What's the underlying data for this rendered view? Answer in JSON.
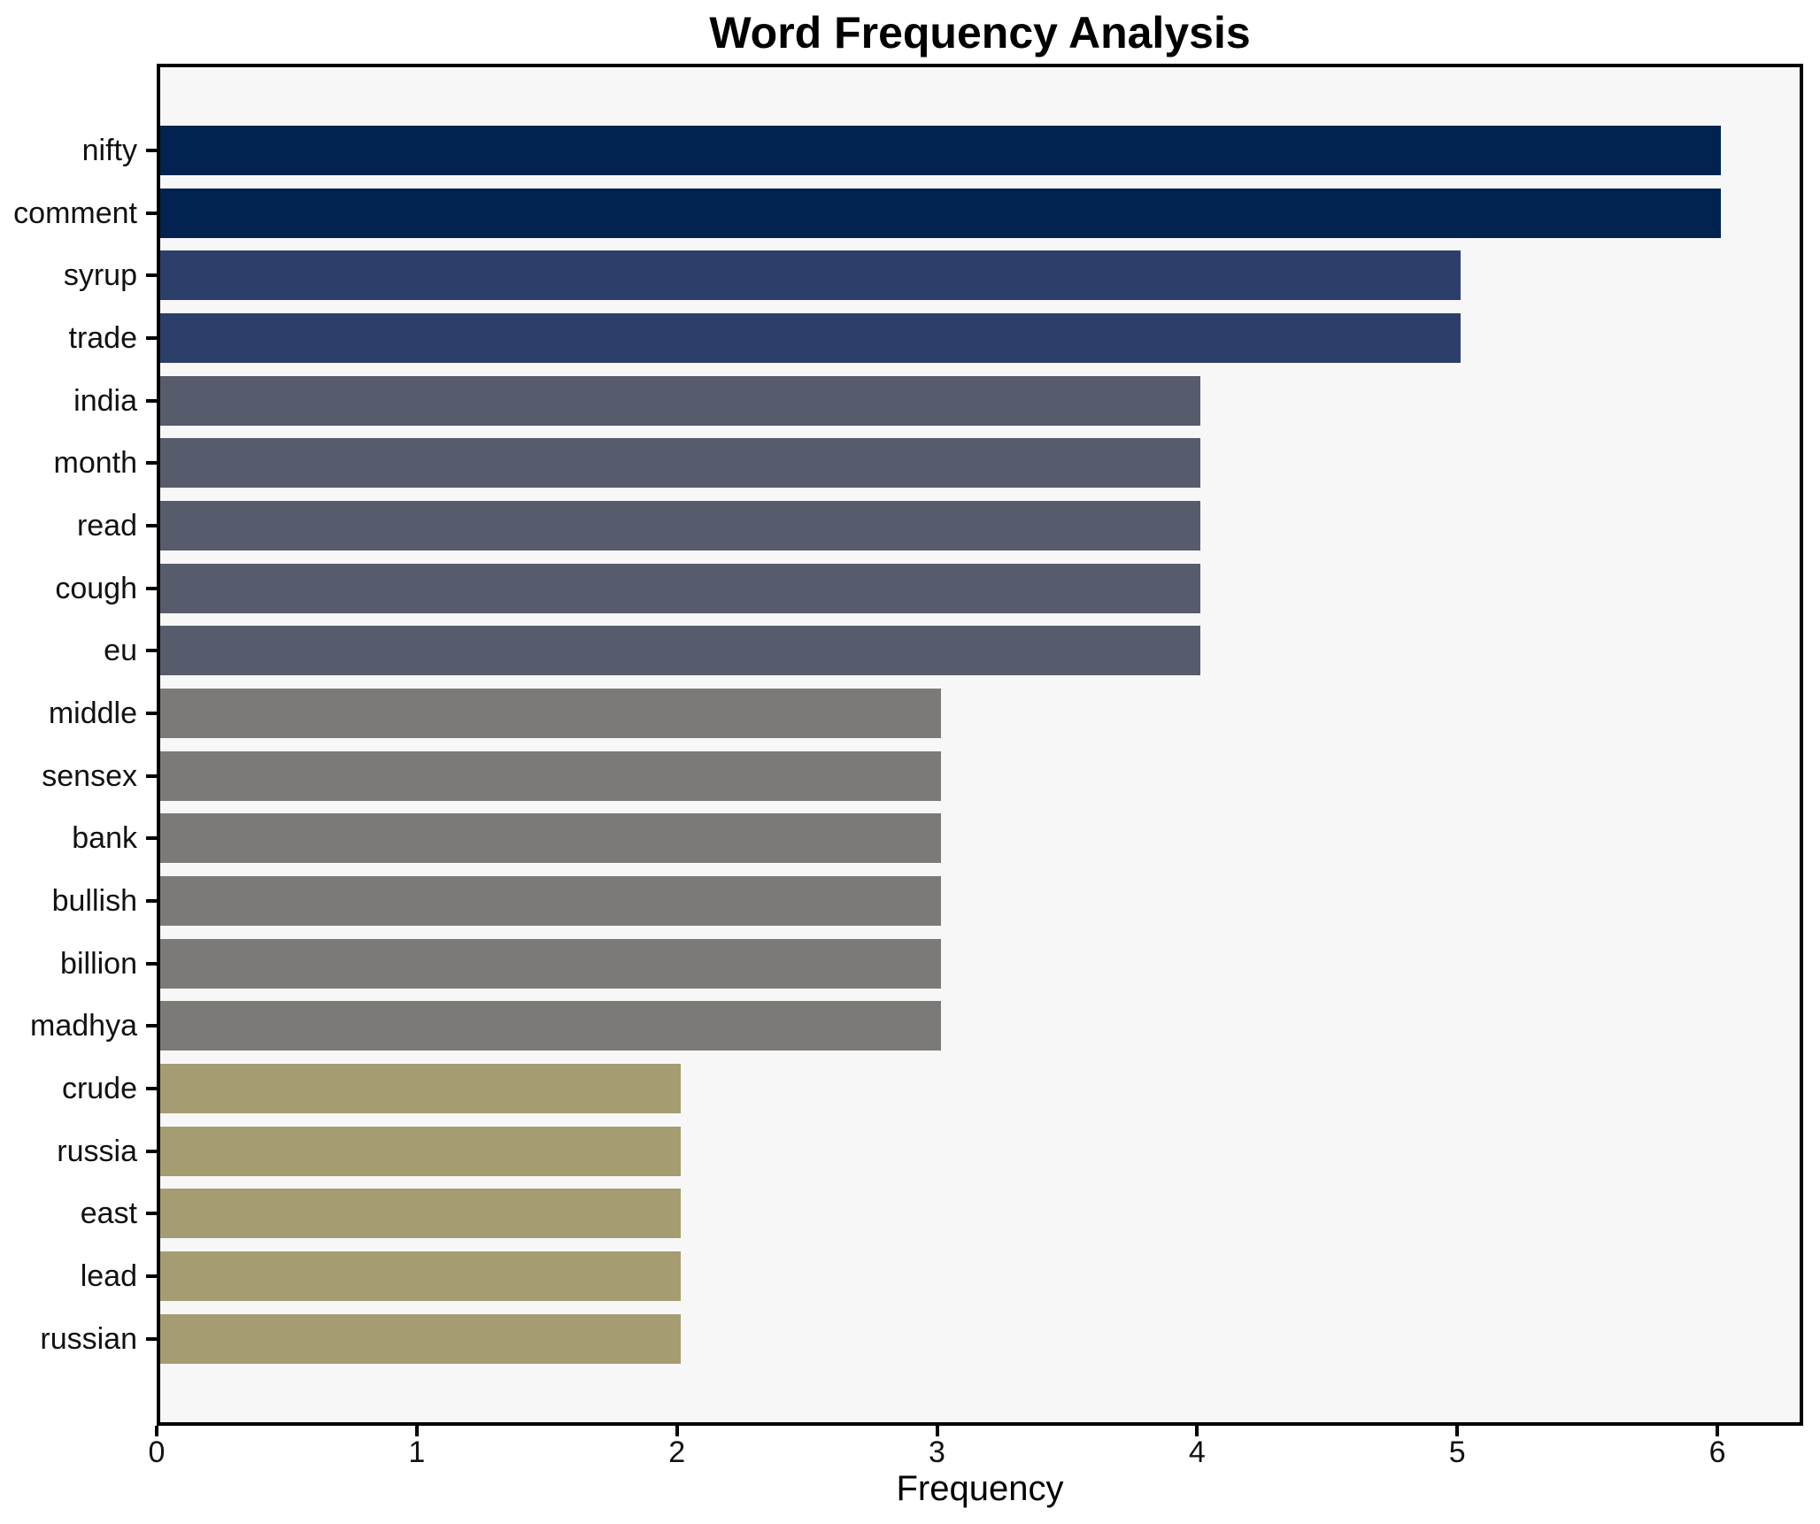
{
  "chart_data": {
    "type": "bar",
    "orientation": "horizontal",
    "title": "Word Frequency Analysis",
    "xlabel": "Frequency",
    "ylabel": "",
    "categories": [
      "nifty",
      "comment",
      "syrup",
      "trade",
      "india",
      "month",
      "read",
      "cough",
      "eu",
      "middle",
      "sensex",
      "bank",
      "bullish",
      "billion",
      "madhya",
      "crude",
      "russia",
      "east",
      "lead",
      "russian"
    ],
    "values": [
      6,
      6,
      5,
      5,
      4,
      4,
      4,
      4,
      4,
      3,
      3,
      3,
      3,
      3,
      3,
      2,
      2,
      2,
      2,
      2
    ],
    "xlim": [
      0,
      6.33
    ],
    "xticks": [
      "0",
      "1",
      "2",
      "3",
      "4",
      "5",
      "6"
    ],
    "grid": false,
    "legend_position": "none",
    "colors_by_value": {
      "6": "#02234f",
      "5": "#2c3f6b",
      "4": "#565c6c",
      "3": "#7b7a76",
      "2": "#a69c71"
    },
    "plot_background": "#f7f7f8",
    "figure_background": "#ffffff",
    "spine_color": "#000000",
    "text_color": "#111111"
  }
}
